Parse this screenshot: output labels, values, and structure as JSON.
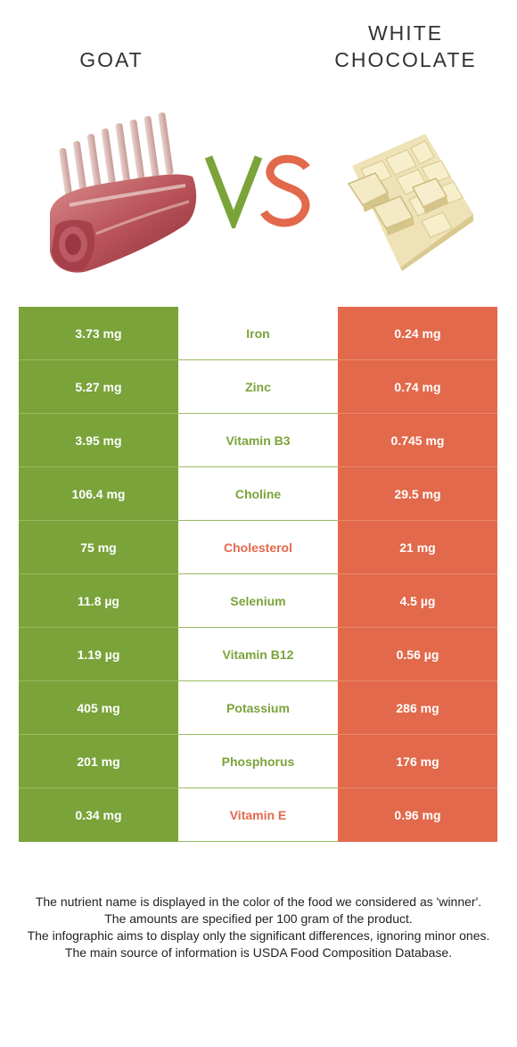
{
  "titles": {
    "left": "GOAT",
    "right_line1": "WHITE",
    "right_line2": "CHOCOLATE"
  },
  "vs": {
    "v_color": "#7aa33a",
    "s_color": "#e2694b"
  },
  "colors": {
    "left_winner": "#7aa33a",
    "right_winner": "#e2694b"
  },
  "rows": [
    {
      "left": "3.73 mg",
      "nutrient": "Iron",
      "right": "0.24 mg",
      "winner": "left"
    },
    {
      "left": "5.27 mg",
      "nutrient": "Zinc",
      "right": "0.74 mg",
      "winner": "left"
    },
    {
      "left": "3.95 mg",
      "nutrient": "Vitamin B3",
      "right": "0.745 mg",
      "winner": "left"
    },
    {
      "left": "106.4 mg",
      "nutrient": "Choline",
      "right": "29.5 mg",
      "winner": "left"
    },
    {
      "left": "75 mg",
      "nutrient": "Cholesterol",
      "right": "21 mg",
      "winner": "right"
    },
    {
      "left": "11.8 µg",
      "nutrient": "Selenium",
      "right": "4.5 µg",
      "winner": "left"
    },
    {
      "left": "1.19 µg",
      "nutrient": "Vitamin B12",
      "right": "0.56 µg",
      "winner": "left"
    },
    {
      "left": "405 mg",
      "nutrient": "Potassium",
      "right": "286 mg",
      "winner": "left"
    },
    {
      "left": "201 mg",
      "nutrient": "Phosphorus",
      "right": "176 mg",
      "winner": "left"
    },
    {
      "left": "0.34 mg",
      "nutrient": "Vitamin E",
      "right": "0.96 mg",
      "winner": "right"
    }
  ],
  "footer": {
    "line1": "The nutrient name is displayed in the color of the food we considered as 'winner'.",
    "line2": "The amounts are specified per 100 gram of the product.",
    "line3": "The infographic aims to display only the significant differences, ignoring minor ones.",
    "line4": "The main source of information is USDA Food Composition Database."
  }
}
